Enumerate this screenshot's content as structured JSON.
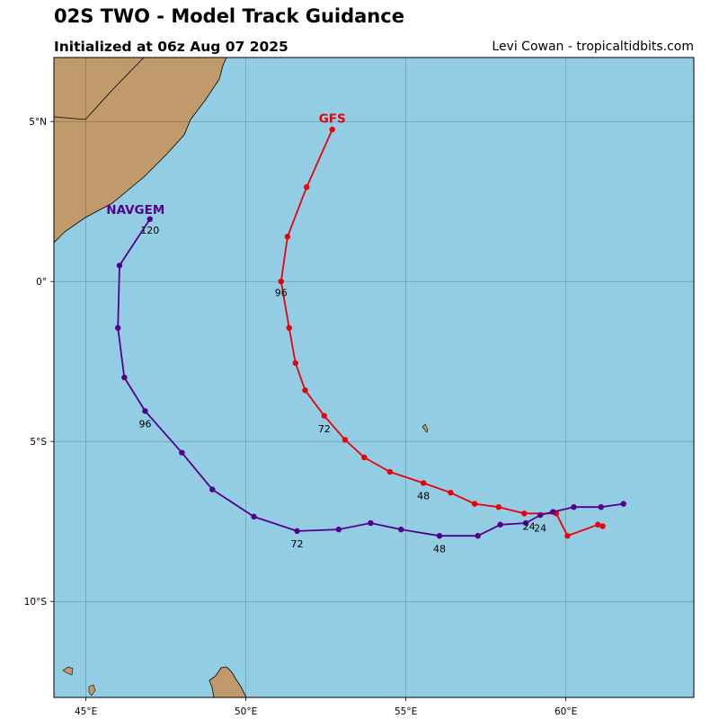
{
  "header": {
    "title": "02S TWO - Model Track Guidance",
    "subtitle": "Initialized at 06z Aug 07 2025",
    "credit": "Levi Cowan - tropicaltidbits.com"
  },
  "map": {
    "lon_range": [
      44,
      64
    ],
    "lat_range": [
      -13,
      7
    ],
    "ocean_color": "#93cde4",
    "land_color": "#c09a6b",
    "lon_ticks": [
      {
        "value": 45,
        "label": "45°E"
      },
      {
        "value": 50,
        "label": "50°E"
      },
      {
        "value": 55,
        "label": "55°E"
      },
      {
        "value": 60,
        "label": "60°E"
      }
    ],
    "lat_ticks": [
      {
        "value": 5,
        "label": "5°N"
      },
      {
        "value": 0,
        "label": "0°"
      },
      {
        "value": -5,
        "label": "5°S"
      },
      {
        "value": -10,
        "label": "10°S"
      }
    ]
  },
  "tracks": [
    {
      "model": "GFS",
      "color": "#e8000b",
      "points": [
        [
          61.15,
          -7.65
        ],
        [
          61.0,
          -7.6
        ],
        [
          60.05,
          -7.95
        ],
        [
          59.7,
          -7.25
        ],
        [
          58.7,
          -7.25
        ],
        [
          57.9,
          -7.05
        ],
        [
          57.15,
          -6.95
        ],
        [
          56.4,
          -6.6
        ],
        [
          55.55,
          -6.3
        ],
        [
          54.5,
          -5.95
        ],
        [
          53.7,
          -5.5
        ],
        [
          53.1,
          -4.95
        ],
        [
          52.45,
          -4.2
        ],
        [
          51.85,
          -3.4
        ],
        [
          51.55,
          -2.55
        ],
        [
          51.35,
          -1.45
        ],
        [
          51.1,
          0.0
        ],
        [
          51.3,
          1.4
        ],
        [
          51.9,
          2.95
        ],
        [
          52.7,
          4.75
        ]
      ],
      "hour_labels": [
        {
          "text": "24",
          "lon": 58.85,
          "lat": -7.65
        },
        {
          "text": "48",
          "lon": 55.55,
          "lat": -6.7
        },
        {
          "text": "72",
          "lon": 52.45,
          "lat": -4.6
        },
        {
          "text": "96",
          "lon": 51.1,
          "lat": -0.35
        }
      ],
      "name_label": {
        "text": "GFS",
        "lon": 52.7,
        "lat": 5.1
      }
    },
    {
      "model": "NAVGEM",
      "color": "#54008c",
      "points": [
        [
          61.8,
          -6.95
        ],
        [
          61.1,
          -7.05
        ],
        [
          60.25,
          -7.05
        ],
        [
          59.6,
          -7.2
        ],
        [
          59.2,
          -7.3
        ],
        [
          58.75,
          -7.55
        ],
        [
          57.95,
          -7.6
        ],
        [
          57.25,
          -7.95
        ],
        [
          56.05,
          -7.95
        ],
        [
          54.85,
          -7.75
        ],
        [
          53.9,
          -7.55
        ],
        [
          52.9,
          -7.75
        ],
        [
          51.6,
          -7.8
        ],
        [
          50.25,
          -7.35
        ],
        [
          48.95,
          -6.5
        ],
        [
          48.0,
          -5.35
        ],
        [
          46.85,
          -4.05
        ],
        [
          46.2,
          -3.0
        ],
        [
          46.0,
          -1.45
        ],
        [
          46.05,
          0.5
        ],
        [
          47.0,
          1.95
        ]
      ],
      "hour_labels": [
        {
          "text": "24",
          "lon": 59.2,
          "lat": -7.7
        },
        {
          "text": "48",
          "lon": 56.05,
          "lat": -8.35
        },
        {
          "text": "72",
          "lon": 51.6,
          "lat": -8.2
        },
        {
          "text": "96",
          "lon": 46.85,
          "lat": -4.45
        },
        {
          "text": "120",
          "lon": 47.0,
          "lat": 1.6
        }
      ],
      "name_label": {
        "text": "NAVGEM",
        "lon": 46.55,
        "lat": 2.25
      }
    }
  ]
}
